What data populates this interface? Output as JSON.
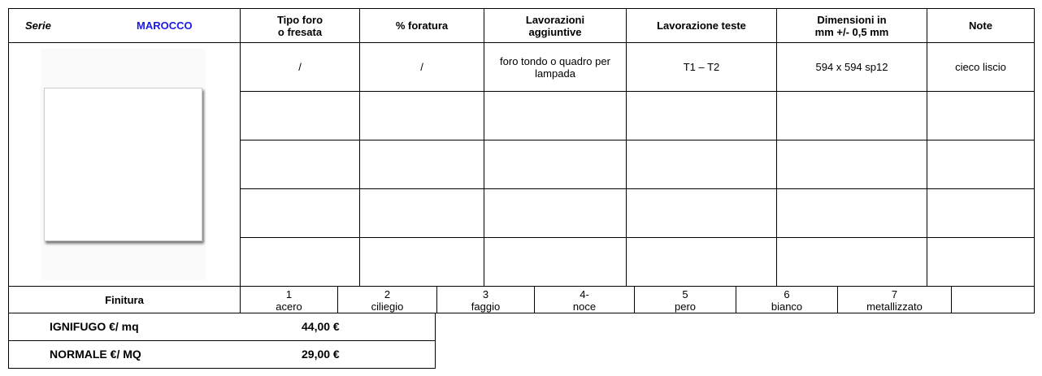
{
  "header": {
    "serie_label": "Serie",
    "serie_name": "MAROCCO",
    "columns": [
      "Tipo foro o fresata",
      "% foratura",
      "Lavorazioni aggiuntive",
      "Lavorazione teste",
      "Dimensioni in mm +/- 0,5 mm",
      "Note"
    ]
  },
  "rows": [
    [
      "/",
      "/",
      "foro tondo o quadro per lampada",
      "T1 – T2",
      "594 x 594  sp12",
      "cieco liscio"
    ]
  ],
  "finitura": {
    "label": "Finitura",
    "options": [
      {
        "number": "1",
        "name": "acero"
      },
      {
        "number": "2",
        "name": "ciliegio"
      },
      {
        "number": "3",
        "name": "faggio"
      },
      {
        "number": "4-",
        "name": "noce"
      },
      {
        "number": "5",
        "name": "pero"
      },
      {
        "number": "6",
        "name": "bianco"
      },
      {
        "number": "7",
        "name": "metallizzato"
      }
    ]
  },
  "prices": [
    {
      "label": "IGNIFUGO €/ mq",
      "value": "44,00 €"
    },
    {
      "label": "NORMALE €/ MQ",
      "value": "29,00 €"
    }
  ]
}
